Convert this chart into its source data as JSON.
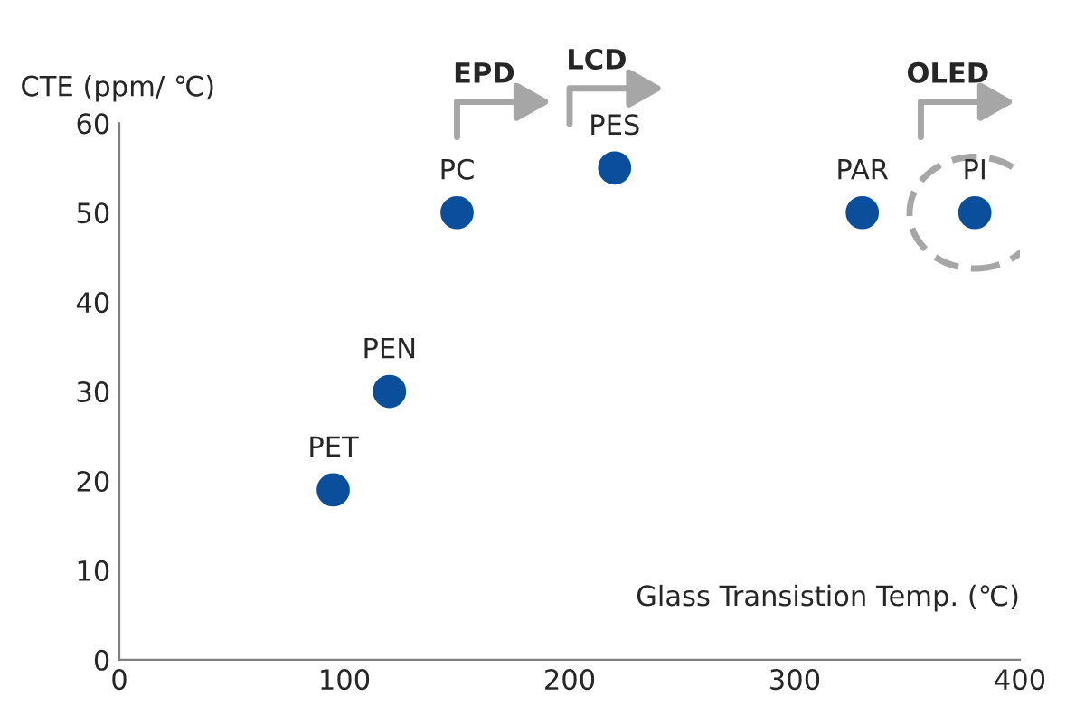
{
  "chart_data": {
    "type": "scatter",
    "ylabel": "CTE (ppm/ ℃)",
    "xlabel": "Glass Transistion Temp. (℃)",
    "x": [
      95,
      120,
      150,
      220,
      330,
      380
    ],
    "series": [
      {
        "color": "#0b4f9c",
        "values": [
          19,
          30,
          50,
          55,
          50,
          50
        ],
        "value_labels": [
          "PET",
          "PEN",
          "PC",
          "PES",
          "PAR",
          "PI"
        ]
      }
    ],
    "marker": "circle",
    "xlim": [
      0,
      400
    ],
    "xticks": [
      0,
      100,
      200,
      300,
      400
    ],
    "ylim": [
      0,
      60
    ],
    "yticks": [
      0,
      10,
      20,
      30,
      40,
      50,
      60
    ],
    "grid": false,
    "legend": false,
    "annotations": [
      "EPD",
      "LCD",
      "OLED"
    ]
  }
}
